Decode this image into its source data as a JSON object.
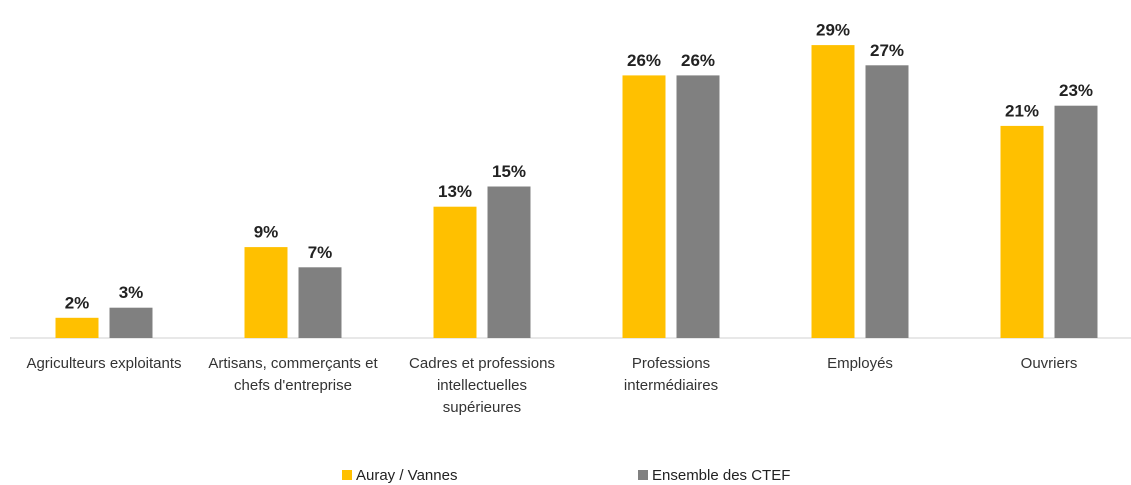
{
  "chart_data": {
    "type": "bar",
    "categories": [
      "Agriculteurs exploitants",
      "Artisans, commerçants et chefs d'entreprise",
      "Cadres et professions intellectuelles supérieures",
      "Professions intermédiaires",
      "Employés",
      "Ouvriers"
    ],
    "series": [
      {
        "name": "Auray / Vannes",
        "color": "#FFC000",
        "values": [
          2,
          9,
          13,
          26,
          29,
          21
        ],
        "value_labels": [
          "2%",
          "9%",
          "13%",
          "26%",
          "29%",
          "21%"
        ]
      },
      {
        "name": "Ensemble des CTEF",
        "color": "#808080",
        "values": [
          3,
          7,
          15,
          26,
          27,
          23
        ],
        "value_labels": [
          "3%",
          "7%",
          "15%",
          "26%",
          "27%",
          "23%"
        ]
      }
    ],
    "legend": "bottom"
  }
}
